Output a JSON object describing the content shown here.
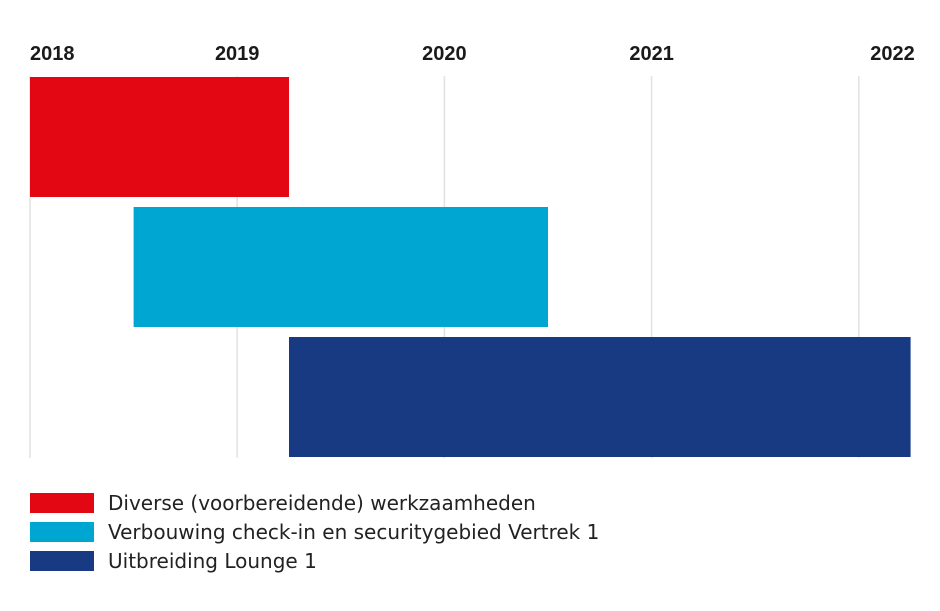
{
  "chart_data": {
    "type": "gantt",
    "x_ticks": [
      2018,
      2019,
      2020,
      2021,
      2022
    ],
    "xlim": [
      2018,
      2022.25
    ],
    "grid": true,
    "legend_position": "bottom",
    "series": [
      {
        "name": "Diverse (voorbereidende) werkzaamheden",
        "start": 2018.0,
        "end": 2019.25,
        "color": "#e30613"
      },
      {
        "name": "Verbouwing check-in en securitygebied Vertrek 1",
        "start": 2018.5,
        "end": 2020.5,
        "color": "#00a6d2"
      },
      {
        "name": "Uitbreiding Lounge 1",
        "start": 2019.25,
        "end": 2022.25,
        "color": "#173a82"
      }
    ]
  }
}
